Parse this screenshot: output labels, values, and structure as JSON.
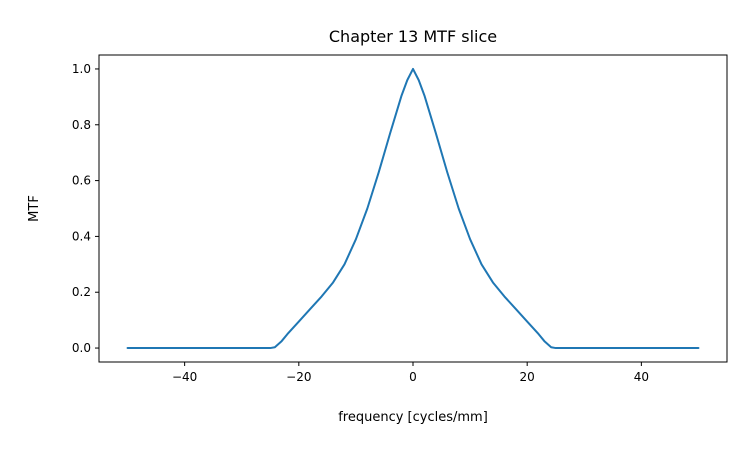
{
  "chart_data": {
    "type": "line",
    "title": "Chapter 13 MTF slice",
    "xlabel": "frequency [cycles/mm]",
    "ylabel": "MTF",
    "xlim": [
      -55,
      55
    ],
    "ylim": [
      -0.05,
      1.05
    ],
    "grid": false,
    "x_ticks": [
      -40,
      -20,
      0,
      20,
      40
    ],
    "x_tick_labels": [
      "−40",
      "−20",
      "0",
      "20",
      "40"
    ],
    "y_ticks": [
      0.0,
      0.2,
      0.4,
      0.6,
      0.8,
      1.0
    ],
    "y_tick_labels": [
      "0.0",
      "0.2",
      "0.4",
      "0.6",
      "0.8",
      "1.0"
    ],
    "series": [
      {
        "color": "#1f77b4",
        "x": [
          -50,
          -40,
          -30,
          -25,
          -24.2,
          -23,
          -22,
          -20,
          -18,
          -16,
          -14,
          -12,
          -10,
          -8,
          -6,
          -4,
          -2,
          -1,
          0,
          1,
          2,
          4,
          6,
          8,
          10,
          12,
          14,
          16,
          18,
          20,
          22,
          23,
          24.2,
          25,
          30,
          40,
          50
        ],
        "y": [
          0.0,
          0.0,
          0.0,
          0.0,
          0.003,
          0.025,
          0.05,
          0.095,
          0.14,
          0.185,
          0.235,
          0.3,
          0.39,
          0.5,
          0.63,
          0.77,
          0.905,
          0.96,
          1.0,
          0.96,
          0.905,
          0.77,
          0.63,
          0.5,
          0.39,
          0.3,
          0.235,
          0.185,
          0.14,
          0.095,
          0.05,
          0.025,
          0.003,
          0.0,
          0.0,
          0.0,
          0.0
        ]
      }
    ]
  }
}
